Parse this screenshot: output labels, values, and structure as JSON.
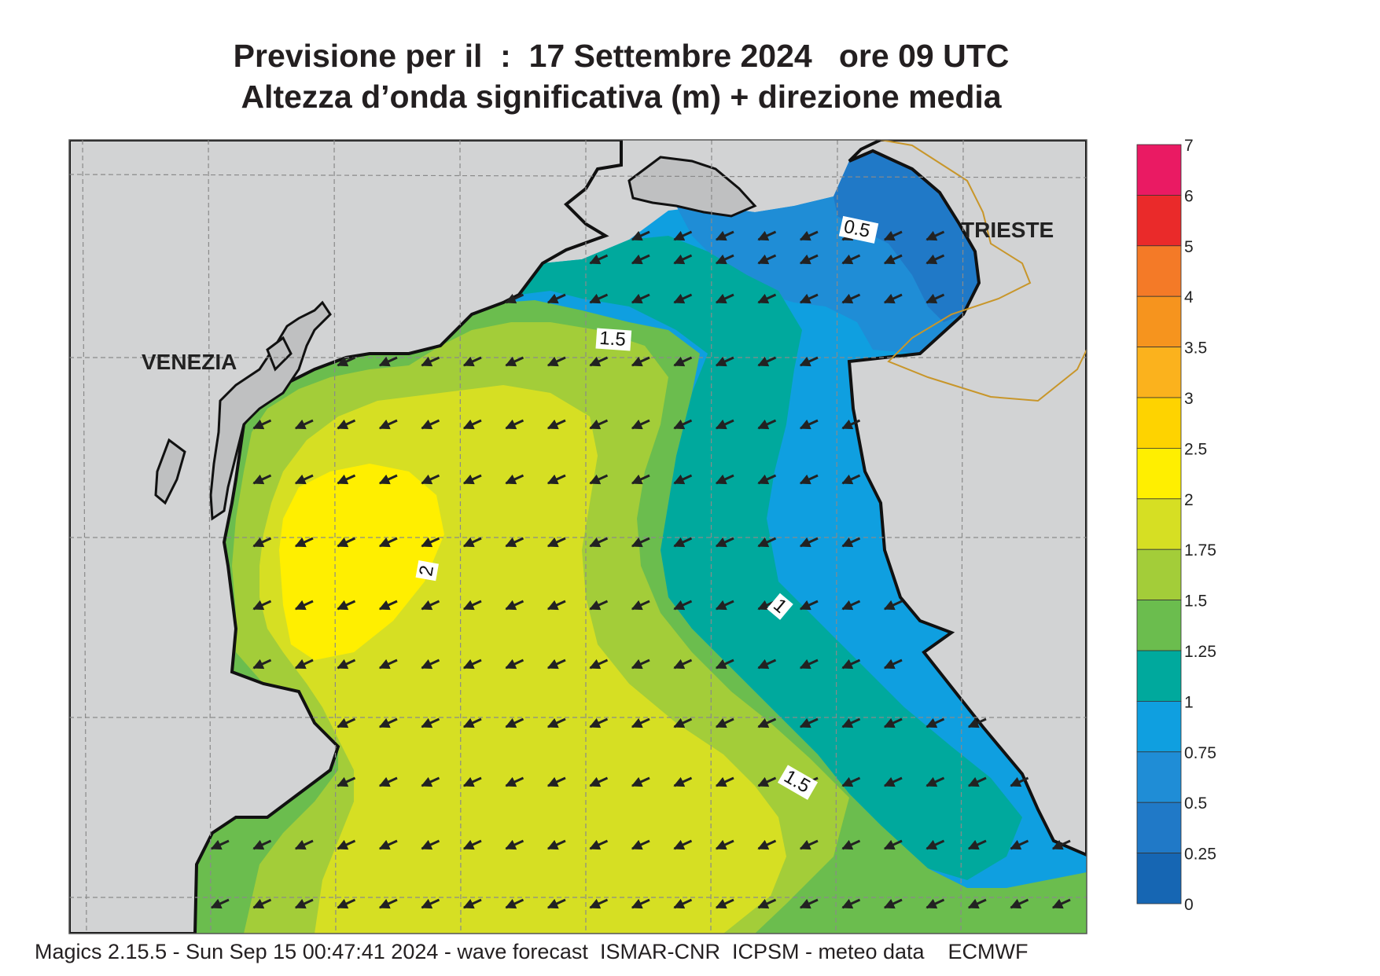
{
  "title": {
    "line1": "Previsione per il  :  17 Settembre 2024   ore 09 UTC",
    "line2": "Altezza d’onda significativa (m) + direzione media"
  },
  "places": {
    "venezia": "VENEZIA",
    "trieste": "TRIESTE"
  },
  "contour_labels": [
    "0.5",
    "1.5",
    "2",
    "1",
    "1.5"
  ],
  "legend": {
    "ticks": [
      "7",
      "6",
      "5",
      "4",
      "3.5",
      "3",
      "2.5",
      "2",
      "1.75",
      "1.5",
      "1.25",
      "1",
      "0.75",
      "0.5",
      "0.25",
      "0"
    ],
    "colors": [
      "#ea1a63",
      "#ea2a2a",
      "#f47a27",
      "#f6941e",
      "#fbb21d",
      "#fed300",
      "#ffef00",
      "#d6df23",
      "#a3cd39",
      "#6bbd4e",
      "#00a99d",
      "#0f9fe0",
      "#1f8dd6",
      "#2079c7",
      "#1666b3"
    ]
  },
  "arrow_direction": "toward south-west",
  "footer": "Magics 2.15.5 - Sun Sep 15 00:47:41 2024 - wave forecast  ISMAR-CNR  ICPSM - meteo data    ECMWF"
}
